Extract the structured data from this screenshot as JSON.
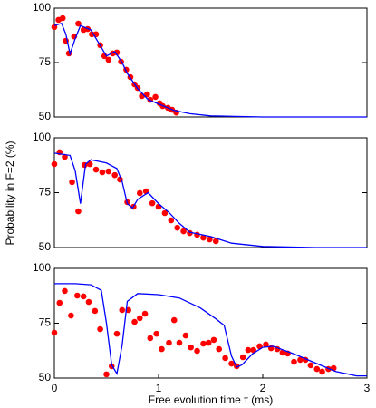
{
  "chart_data": [
    {
      "type": "scatter",
      "xlim": [
        0,
        3
      ],
      "ylim": [
        50,
        100
      ],
      "yticks": [
        50,
        75,
        100
      ],
      "series": [
        {
          "color": "#ff0000",
          "style": "points",
          "x": [
            0,
            0.04,
            0.08,
            0.11,
            0.14,
            0.19,
            0.23,
            0.28,
            0.32,
            0.36,
            0.4,
            0.44,
            0.48,
            0.52,
            0.56,
            0.6,
            0.64,
            0.69,
            0.73,
            0.77,
            0.8,
            0.84,
            0.89,
            0.92,
            0.97,
            1.01,
            1.04,
            1.09,
            1.13,
            1.17
          ],
          "values": [
            91.3,
            94.6,
            95.4,
            85,
            79.2,
            87,
            92.9,
            90,
            90.4,
            88,
            88,
            83,
            78,
            76.3,
            79.2,
            79.6,
            75.4,
            71.7,
            68.3,
            65,
            63.3,
            59.6,
            60.4,
            57.9,
            59.2,
            56.3,
            55,
            54.2,
            53.3,
            52
          ]
        },
        {
          "color": "#0000ff",
          "style": "line",
          "x": [
            0,
            0.07,
            0.11,
            0.15,
            0.2,
            0.25,
            0.35,
            0.45,
            0.5,
            0.58,
            0.65,
            0.7,
            0.8,
            0.9,
            1.0,
            1.15,
            1.3,
            1.5,
            2,
            3
          ],
          "values": [
            92,
            93,
            88,
            79,
            86,
            92,
            90,
            82,
            78,
            80,
            75,
            70,
            63,
            58,
            56,
            53,
            51.5,
            50.5,
            50,
            50
          ]
        }
      ]
    },
    {
      "type": "scatter",
      "xlim": [
        0,
        3
      ],
      "ylim": [
        50,
        100
      ],
      "yticks": [
        50,
        75,
        100
      ],
      "ylabel": "Probability in F=2 (%)",
      "series": [
        {
          "color": "#ff0000",
          "style": "points",
          "x": [
            0,
            0.05,
            0.1,
            0.17,
            0.23,
            0.29,
            0.34,
            0.4,
            0.46,
            0.52,
            0.58,
            0.63,
            0.7,
            0.76,
            0.82,
            0.88,
            0.94,
            1.0,
            1.06,
            1.12,
            1.18,
            1.24,
            1.3,
            1.37,
            1.43,
            1.49,
            1.55
          ],
          "values": [
            88,
            93.4,
            91.3,
            79.8,
            66.5,
            87.6,
            88,
            85.5,
            84.3,
            84.7,
            83,
            81,
            70.7,
            68.6,
            74.8,
            75.6,
            70.2,
            68.6,
            65.7,
            62.4,
            59,
            57.4,
            56.6,
            55.8,
            54.5,
            53.7,
            52.9
          ]
        },
        {
          "color": "#0000ff",
          "style": "line",
          "x": [
            0,
            0.15,
            0.2,
            0.25,
            0.3,
            0.35,
            0.5,
            0.6,
            0.65,
            0.7,
            0.75,
            0.8,
            0.9,
            1.0,
            1.1,
            1.2,
            1.3,
            1.4,
            1.5,
            1.7,
            2.0,
            2.5,
            3
          ],
          "values": [
            93,
            92,
            85,
            70,
            88,
            90,
            88.5,
            86,
            80,
            70,
            68,
            72,
            75,
            70,
            66,
            61,
            57,
            56,
            55,
            52,
            50.5,
            50,
            50
          ]
        }
      ]
    },
    {
      "type": "scatter",
      "xlim": [
        0,
        3
      ],
      "ylim": [
        50,
        100
      ],
      "yticks": [
        50,
        75,
        100
      ],
      "xticks": [
        0,
        1,
        2,
        3
      ],
      "xlabel": "Free evolution time τ (ms)",
      "series": [
        {
          "color": "#ff0000",
          "style": "points",
          "x": [
            0,
            0.05,
            0.1,
            0.16,
            0.22,
            0.28,
            0.33,
            0.39,
            0.44,
            0.5,
            0.55,
            0.6,
            0.65,
            0.71,
            0.77,
            0.82,
            0.87,
            0.92,
            0.98,
            1.03,
            1.1,
            1.15,
            1.2,
            1.26,
            1.31,
            1.37,
            1.43,
            1.48,
            1.53,
            1.58,
            1.64,
            1.7,
            1.75,
            1.81,
            1.86,
            1.91,
            1.97,
            2.03,
            2.08,
            2.14,
            2.19,
            2.24,
            2.3,
            2.36,
            2.41,
            2.46,
            2.52,
            2.57,
            2.63,
            2.68
          ],
          "values": [
            70.7,
            84.3,
            89.7,
            78.5,
            87.6,
            87.2,
            84.7,
            80.6,
            72.3,
            51.7,
            55.4,
            70.2,
            81,
            81,
            75.6,
            77.3,
            79.3,
            68.2,
            70.2,
            63.2,
            66.1,
            76.4,
            66.1,
            69.4,
            64,
            62.4,
            65.7,
            66.1,
            67.4,
            63.2,
            59.1,
            56.6,
            55.4,
            59.5,
            62.8,
            62.8,
            64.5,
            65.3,
            63.6,
            63.2,
            61.6,
            61.2,
            57.4,
            58.3,
            58.3,
            55.8,
            54.1,
            52.9,
            54.1,
            54.5
          ]
        },
        {
          "color": "#0000ff",
          "style": "line",
          "x": [
            0,
            0.2,
            0.35,
            0.45,
            0.5,
            0.55,
            0.6,
            0.65,
            0.7,
            0.8,
            1.0,
            1.2,
            1.4,
            1.55,
            1.63,
            1.7,
            1.75,
            1.8,
            1.9,
            2.0,
            2.1,
            2.3,
            2.5,
            2.7,
            2.9,
            3
          ],
          "values": [
            93,
            93,
            92.5,
            90,
            75,
            56,
            52,
            65,
            85,
            88.5,
            88,
            86.5,
            82,
            77,
            74,
            60,
            55,
            56,
            61,
            64,
            64.5,
            61,
            57,
            53,
            51,
            51
          ]
        }
      ]
    }
  ]
}
